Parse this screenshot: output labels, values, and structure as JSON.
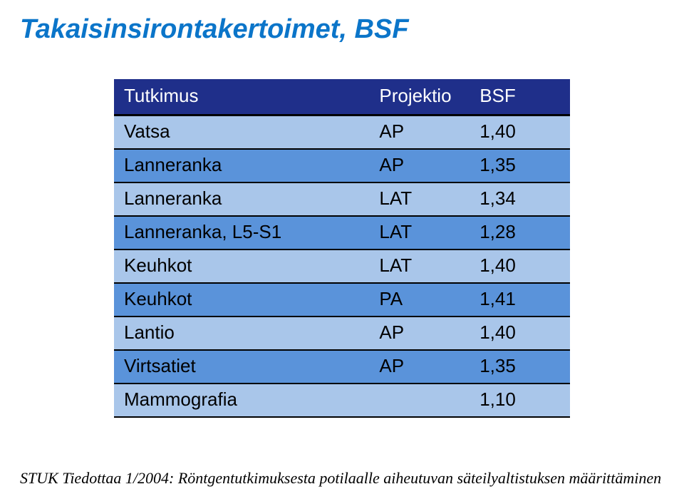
{
  "title": "Takaisinsirontakertoimet, BSF",
  "table": {
    "columns": [
      "Tutkimus",
      "Projektio",
      "BSF"
    ],
    "rows": [
      [
        "Vatsa",
        "AP",
        "1,40"
      ],
      [
        "Lanneranka",
        "AP",
        "1,35"
      ],
      [
        "Lanneranka",
        "LAT",
        "1,34"
      ],
      [
        "Lanneranka, L5-S1",
        "LAT",
        "1,28"
      ],
      [
        "Keuhkot",
        "LAT",
        "1,40"
      ],
      [
        "Keuhkot",
        "PA",
        "1,41"
      ],
      [
        "Lantio",
        "AP",
        "1,40"
      ],
      [
        "Virtsatiet",
        "AP",
        "1,35"
      ],
      [
        "Mammografia",
        "",
        "1,10"
      ]
    ],
    "header_bg": "#1f2f8a",
    "header_fg": "#ffffff",
    "row_odd_bg": "#a9c6ea",
    "row_even_bg": "#5a93da",
    "border_color": "#000000",
    "font_size": 26
  },
  "footnote": "STUK Tiedottaa 1/2004: Röntgentutkimuksesta potilaalle aiheutuvan säteilyaltistuksen määrittäminen",
  "title_color": "#0b75c9"
}
